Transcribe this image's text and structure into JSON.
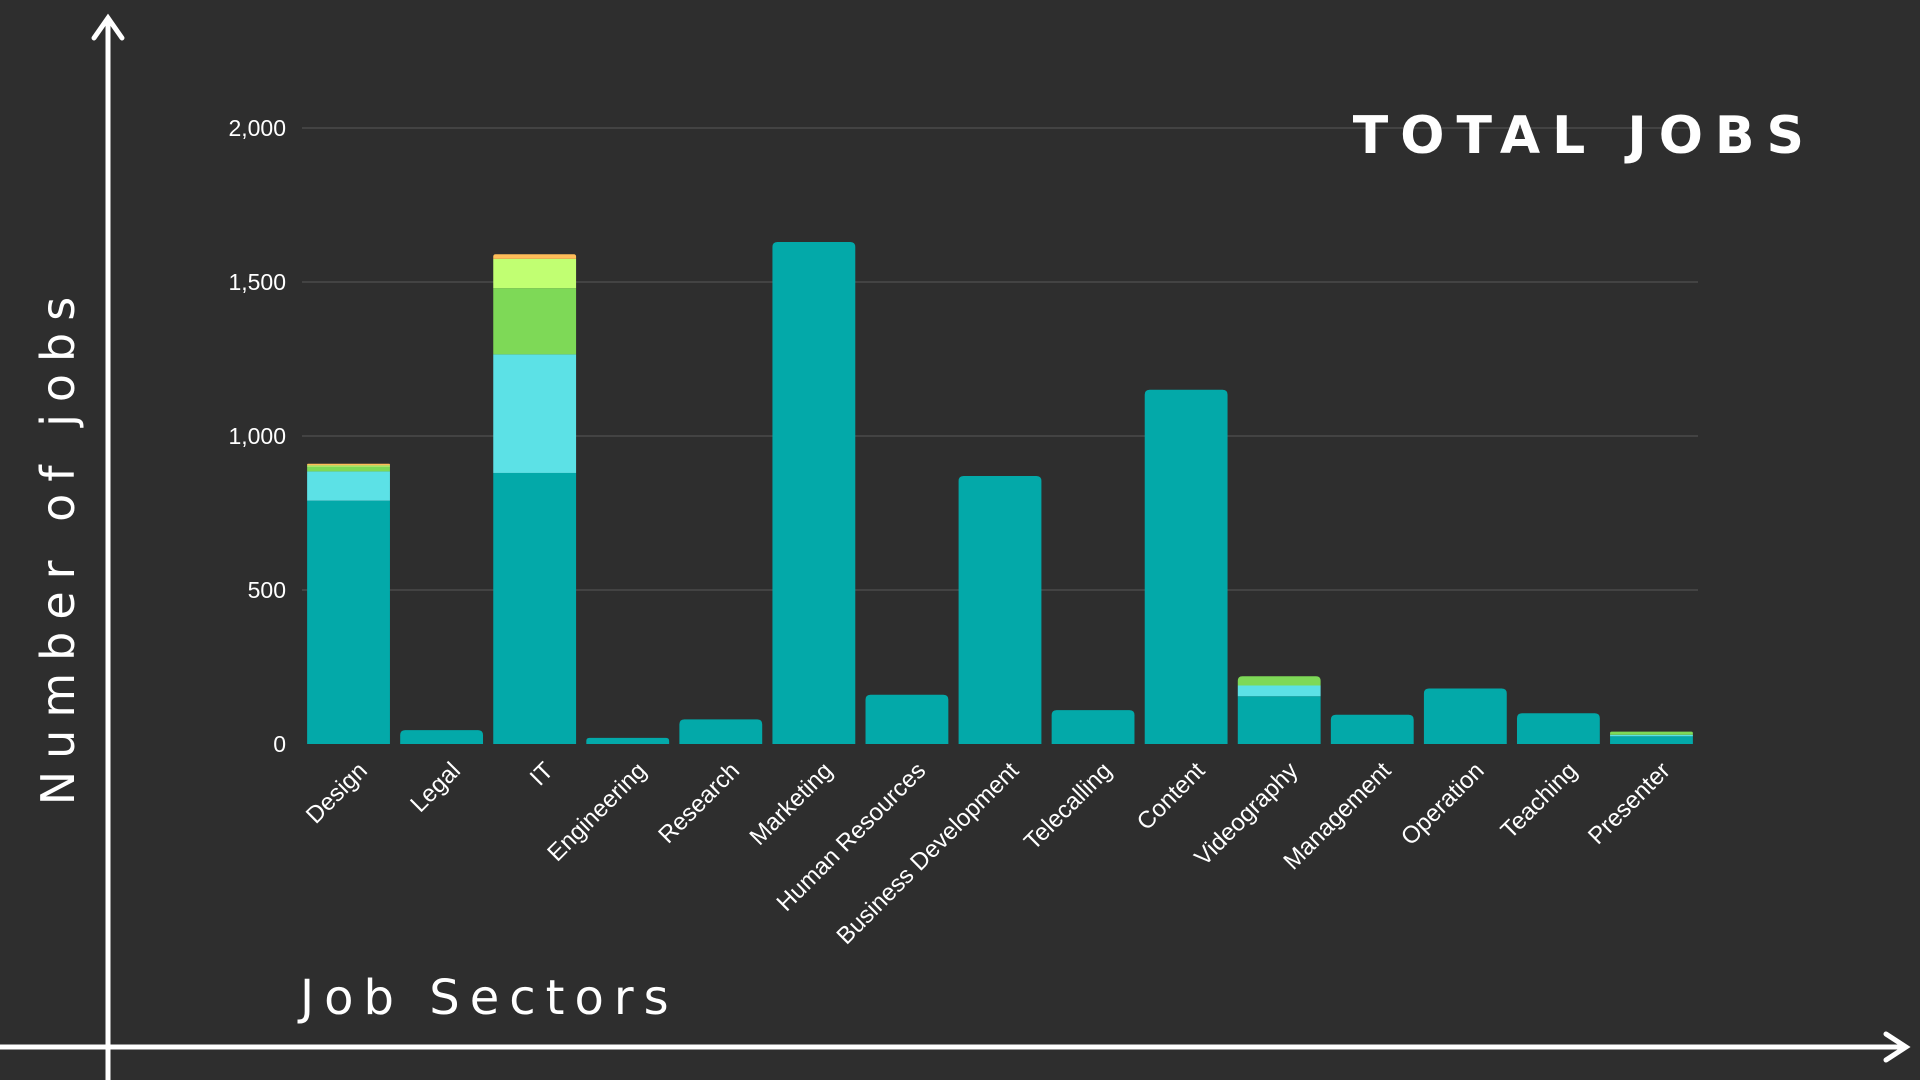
{
  "chart_data": {
    "type": "bar",
    "stacked": true,
    "title": "TOTAL JOBS",
    "xlabel": "Job Sectors",
    "ylabel": "Number of jobs",
    "ylim": [
      0,
      2000
    ],
    "yticks": [
      0,
      500,
      1000,
      1500,
      2000
    ],
    "ytick_labels": [
      "0",
      "500",
      "1,000",
      "1,500",
      "2,000"
    ],
    "grid": true,
    "legend": "none",
    "categories": [
      "Design",
      "Legal",
      "IT",
      "Engineering",
      "Research",
      "Marketing",
      "Human Resources",
      "Business Development",
      "Telecalling",
      "Content",
      "Videography",
      "Management",
      "Operation",
      "Teaching",
      "Presenter"
    ],
    "series": [
      {
        "color": "#03a9a9",
        "values": [
          790,
          45,
          880,
          20,
          80,
          1630,
          160,
          870,
          110,
          1150,
          155,
          95,
          180,
          100,
          25
        ]
      },
      {
        "color": "#5ce1e6",
        "values": [
          95,
          0,
          385,
          0,
          0,
          0,
          0,
          0,
          0,
          0,
          35,
          0,
          0,
          0,
          5
        ]
      },
      {
        "color": "#7ed957",
        "values": [
          15,
          0,
          215,
          0,
          0,
          0,
          0,
          0,
          0,
          0,
          30,
          0,
          0,
          0,
          10
        ]
      },
      {
        "color": "#c1ff72",
        "values": [
          5,
          0,
          95,
          0,
          0,
          0,
          0,
          0,
          0,
          0,
          0,
          0,
          0,
          0,
          0
        ]
      },
      {
        "color": "#ffbd59",
        "values": [
          5,
          0,
          15,
          0,
          0,
          0,
          0,
          0,
          0,
          0,
          0,
          0,
          0,
          0,
          0
        ]
      }
    ]
  }
}
